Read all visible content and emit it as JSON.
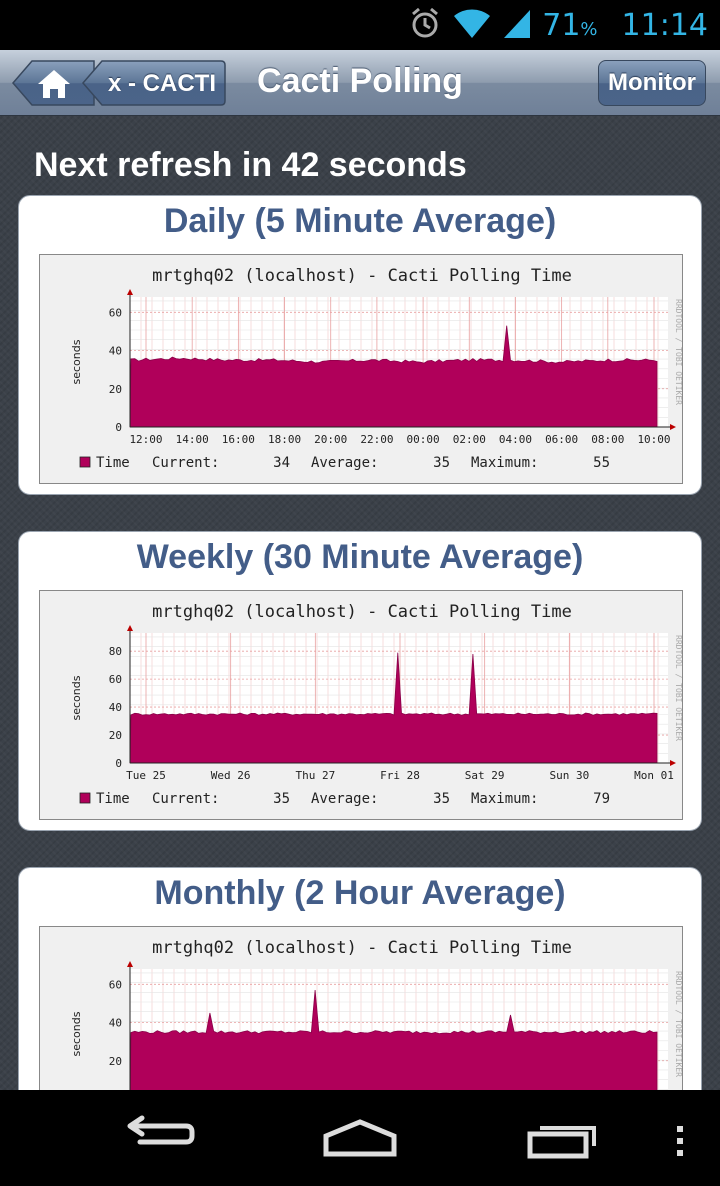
{
  "status_bar": {
    "battery_percent": "71",
    "percent_sign": "%",
    "time": "11:14"
  },
  "nav": {
    "title": "Cacti Polling",
    "back_label": "x - CACTI",
    "right_button": "Monitor"
  },
  "refresh_text": "Next refresh in 42 seconds",
  "graphs": [
    {
      "card_title": "Daily (5 Minute Average)",
      "graph_title": "mrtghq02 (localhost) - Cacti Polling Time",
      "ylabel": "seconds",
      "watermark": "RRDTOOL / TOBI OETIKER",
      "x_ticks": [
        "12:00",
        "14:00",
        "16:00",
        "18:00",
        "20:00",
        "22:00",
        "00:00",
        "02:00",
        "04:00",
        "06:00",
        "08:00",
        "10:00"
      ],
      "y_ticks": [
        "0",
        "20",
        "40",
        "60"
      ],
      "legend": {
        "series": "Time",
        "current_label": "Current:",
        "current": "34",
        "average_label": "Average:",
        "average": "35",
        "maximum_label": "Maximum:",
        "maximum": "55"
      }
    },
    {
      "card_title": "Weekly (30 Minute Average)",
      "graph_title": "mrtghq02 (localhost) - Cacti Polling Time",
      "ylabel": "seconds",
      "watermark": "RRDTOOL / TOBI OETIKER",
      "x_ticks": [
        "Tue 25",
        "Wed 26",
        "Thu 27",
        "Fri 28",
        "Sat 29",
        "Sun 30",
        "Mon 01"
      ],
      "y_ticks": [
        "0",
        "20",
        "40",
        "60",
        "80"
      ],
      "legend": {
        "series": "Time",
        "current_label": "Current:",
        "current": "35",
        "average_label": "Average:",
        "average": "35",
        "maximum_label": "Maximum:",
        "maximum": "79"
      }
    },
    {
      "card_title": "Monthly (2 Hour Average)",
      "graph_title": "mrtghq02 (localhost) - Cacti Polling Time",
      "ylabel": "seconds",
      "watermark": "RRDTOOL / TOBI OETIKER",
      "x_ticks": [],
      "y_ticks": [
        "20",
        "40",
        "60"
      ],
      "legend": null
    }
  ],
  "chart_data": [
    {
      "type": "area",
      "title": "mrtghq02 (localhost) - Cacti Polling Time",
      "ylabel": "seconds",
      "ylim": [
        0,
        68
      ],
      "categories": [
        "12:00",
        "14:00",
        "16:00",
        "18:00",
        "20:00",
        "22:00",
        "00:00",
        "02:00",
        "04:00",
        "06:00",
        "08:00",
        "10:00"
      ],
      "series": [
        {
          "name": "Time",
          "values": [
            35,
            36,
            35,
            35,
            34,
            35,
            34,
            35,
            35,
            34,
            35,
            35
          ]
        }
      ],
      "spikes": [
        {
          "at": "04:00",
          "value": 53
        }
      ],
      "color": "#b0005a"
    },
    {
      "type": "area",
      "title": "mrtghq02 (localhost) - Cacti Polling Time",
      "ylabel": "seconds",
      "ylim": [
        0,
        93
      ],
      "categories": [
        "Tue 25",
        "Wed 26",
        "Thu 27",
        "Fri 28",
        "Sat 29",
        "Sun 30",
        "Mon 01"
      ],
      "series": [
        {
          "name": "Time",
          "values": [
            35,
            35,
            35,
            35,
            35,
            35,
            35
          ]
        }
      ],
      "spikes": [
        {
          "at": "Fri 28",
          "value": 79
        },
        {
          "at": "Sat 29",
          "value": 78
        }
      ],
      "color": "#b0005a"
    },
    {
      "type": "area",
      "title": "mrtghq02 (localhost) - Cacti Polling Time",
      "ylabel": "seconds",
      "ylim": [
        0,
        68
      ],
      "series": [
        {
          "name": "Time",
          "values": [
            35,
            35,
            35,
            35,
            35,
            35,
            35,
            35,
            35,
            35
          ]
        }
      ],
      "spikes": [
        {
          "value": 57
        },
        {
          "value": 45
        },
        {
          "value": 44
        }
      ],
      "color": "#b0005a"
    }
  ]
}
